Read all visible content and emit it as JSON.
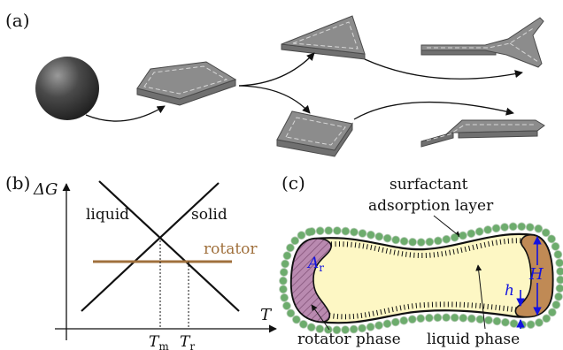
{
  "panels": {
    "a": {
      "label": "(a)"
    },
    "b": {
      "label": "(b)",
      "y_axis_label": "ΔG",
      "x_axis_label": "T",
      "line_labels": {
        "liquid": "liquid",
        "solid": "solid",
        "rotator": "rotator"
      },
      "tick_labels": {
        "tm": "T",
        "tm_sub": "m",
        "tr": "T",
        "tr_sub": "r"
      }
    },
    "c": {
      "label": "(c)",
      "top_label_line1": "surfactant",
      "top_label_line2": "adsorption layer",
      "area_label": "A",
      "area_sub": "r",
      "height_label": "H",
      "thickness_label": "h",
      "rotator_phase_label": "rotator phase",
      "liquid_phase_label": "liquid phase"
    }
  },
  "colors": {
    "rotator_line": "#a0703c",
    "rotator_fill": "#c08a55",
    "liquid_fill": "#fdf7c4",
    "surfactant_bead": "#8fd08f",
    "dimension_arrow": "#1212e0",
    "plate_gray": "#8c8c8c"
  }
}
